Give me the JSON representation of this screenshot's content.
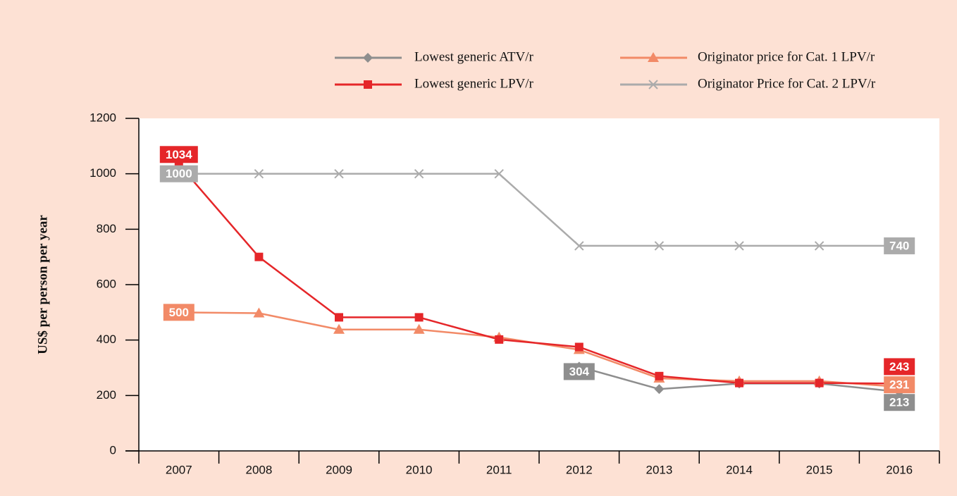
{
  "chart_data": {
    "type": "line",
    "y_label": "US$ per person per year",
    "categories": [
      "2007",
      "2008",
      "2009",
      "2010",
      "2011",
      "2012",
      "2013",
      "2014",
      "2015",
      "2016"
    ],
    "series": [
      {
        "name": "Lowest generic ATV/r",
        "color": "#8e8e8e",
        "marker": "diamond",
        "values": [
          null,
          null,
          null,
          null,
          null,
          304,
          223,
          243,
          243,
          213
        ]
      },
      {
        "name": "Originator price for Cat. 1 LPV/r",
        "color": "#f28a67",
        "marker": "triangle",
        "values": [
          500,
          497,
          438,
          438,
          410,
          365,
          262,
          252,
          252,
          231
        ]
      },
      {
        "name": "Lowest generic LPV/r",
        "color": "#e52629",
        "marker": "square",
        "values": [
          1034,
          700,
          482,
          482,
          402,
          375,
          270,
          245,
          245,
          243
        ]
      },
      {
        "name": "Originator Price for Cat. 2 LPV/r",
        "color": "#ababab",
        "marker": "x",
        "values": [
          1000,
          1000,
          1000,
          1000,
          1000,
          740,
          740,
          740,
          740,
          740
        ]
      }
    ],
    "ylim": [
      0,
      1200
    ],
    "yticks": [
      0,
      200,
      400,
      600,
      800,
      1000,
      1200
    ]
  }
}
